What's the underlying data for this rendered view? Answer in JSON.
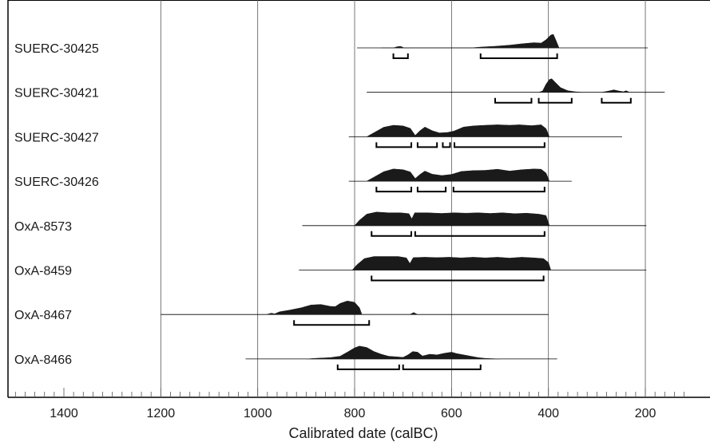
{
  "chart_data": {
    "type": "ridgeline-distribution",
    "xlabel": "Calibrated date (calBC)",
    "xlim": [
      1500,
      120
    ],
    "xticks": [
      1400,
      1200,
      1000,
      800,
      600,
      400,
      200
    ],
    "grid_lines": [
      1200,
      1000,
      800,
      600,
      400,
      200
    ],
    "minor_tick_step": 20,
    "colors": {
      "fill": "#1a1a1a",
      "line": "#000000",
      "grid": "#555555"
    },
    "samples": [
      {
        "label": "SUERC-30425",
        "range": [
          795,
          195
        ],
        "density": [
          [
            745,
            0
          ],
          [
            720,
            0
          ],
          [
            712,
            0.09
          ],
          [
            705,
            0.11
          ],
          [
            698,
            0
          ],
          [
            690,
            0
          ],
          [
            560,
            0
          ],
          [
            540,
            0.06
          ],
          [
            510,
            0.12
          ],
          [
            480,
            0.2
          ],
          [
            455,
            0.3
          ],
          [
            430,
            0.38
          ],
          [
            415,
            0.35
          ],
          [
            405,
            0.6
          ],
          [
            395,
            0.95
          ],
          [
            390,
            1.0
          ],
          [
            385,
            0.6
          ],
          [
            378,
            0
          ]
        ],
        "hpd": [
          [
            720,
            690
          ],
          [
            540,
            382
          ]
        ]
      },
      {
        "label": "SUERC-30421",
        "range": [
          775,
          160
        ],
        "density": [
          [
            420,
            0
          ],
          [
            412,
            0.1
          ],
          [
            405,
            0.6
          ],
          [
            398,
            0.95
          ],
          [
            393,
            1.0
          ],
          [
            385,
            0.7
          ],
          [
            375,
            0.35
          ],
          [
            360,
            0.12
          ],
          [
            345,
            0.04
          ],
          [
            330,
            0
          ],
          [
            290,
            0
          ],
          [
            275,
            0.1
          ],
          [
            265,
            0.18
          ],
          [
            255,
            0.1
          ],
          [
            245,
            0.04
          ],
          [
            240,
            0.12
          ],
          [
            232,
            0
          ],
          [
            222,
            0
          ]
        ],
        "hpd": [
          [
            510,
            435
          ],
          [
            420,
            352
          ],
          [
            290,
            230
          ]
        ]
      },
      {
        "label": "SUERC-30427",
        "range": [
          812,
          248
        ],
        "density": [
          [
            775,
            0
          ],
          [
            760,
            0.3
          ],
          [
            740,
            0.7
          ],
          [
            720,
            0.85
          ],
          [
            700,
            0.8
          ],
          [
            685,
            0.62
          ],
          [
            675,
            0.1
          ],
          [
            665,
            0.45
          ],
          [
            655,
            0.72
          ],
          [
            640,
            0.45
          ],
          [
            625,
            0.28
          ],
          [
            608,
            0.32
          ],
          [
            595,
            0.42
          ],
          [
            575,
            0.72
          ],
          [
            555,
            0.8
          ],
          [
            530,
            0.85
          ],
          [
            505,
            0.88
          ],
          [
            480,
            0.85
          ],
          [
            460,
            0.88
          ],
          [
            435,
            0.82
          ],
          [
            415,
            0.88
          ],
          [
            405,
            0.6
          ],
          [
            398,
            0
          ]
        ],
        "hpd": [
          [
            755,
            683
          ],
          [
            670,
            630
          ],
          [
            618,
            603
          ],
          [
            594,
            408
          ]
        ]
      },
      {
        "label": "SUERC-30426",
        "range": [
          812,
          352
        ],
        "density": [
          [
            775,
            0
          ],
          [
            760,
            0.3
          ],
          [
            740,
            0.7
          ],
          [
            720,
            0.9
          ],
          [
            700,
            0.85
          ],
          [
            685,
            0.68
          ],
          [
            675,
            0.2
          ],
          [
            665,
            0.5
          ],
          [
            655,
            0.75
          ],
          [
            640,
            0.52
          ],
          [
            620,
            0.42
          ],
          [
            600,
            0.5
          ],
          [
            580,
            0.72
          ],
          [
            555,
            0.78
          ],
          [
            530,
            0.8
          ],
          [
            505,
            0.88
          ],
          [
            480,
            0.75
          ],
          [
            455,
            0.85
          ],
          [
            430,
            0.9
          ],
          [
            415,
            0.88
          ],
          [
            405,
            0.6
          ],
          [
            398,
            0
          ]
        ],
        "hpd": [
          [
            755,
            683
          ],
          [
            670,
            612
          ],
          [
            596,
            408
          ]
        ]
      },
      {
        "label": "OxA-8573",
        "range": [
          908,
          198
        ],
        "density": [
          [
            800,
            0
          ],
          [
            790,
            0.4
          ],
          [
            775,
            0.85
          ],
          [
            755,
            1.0
          ],
          [
            730,
            0.95
          ],
          [
            705,
            0.95
          ],
          [
            688,
            0.88
          ],
          [
            682,
            0.5
          ],
          [
            676,
            0.95
          ],
          [
            650,
            0.95
          ],
          [
            620,
            0.9
          ],
          [
            595,
            0.95
          ],
          [
            570,
            0.92
          ],
          [
            545,
            0.95
          ],
          [
            520,
            0.9
          ],
          [
            495,
            0.95
          ],
          [
            470,
            0.88
          ],
          [
            445,
            0.92
          ],
          [
            420,
            0.85
          ],
          [
            405,
            0.75
          ],
          [
            398,
            0
          ]
        ],
        "hpd": [
          [
            765,
            683
          ],
          [
            675,
            408
          ]
        ]
      },
      {
        "label": "OxA-8459",
        "range": [
          915,
          198
        ],
        "density": [
          [
            805,
            0
          ],
          [
            795,
            0.4
          ],
          [
            780,
            0.85
          ],
          [
            760,
            1.0
          ],
          [
            735,
            1.0
          ],
          [
            710,
            1.0
          ],
          [
            693,
            0.9
          ],
          [
            686,
            0.48
          ],
          [
            679,
            0.92
          ],
          [
            655,
            0.95
          ],
          [
            630,
            0.92
          ],
          [
            605,
            0.95
          ],
          [
            580,
            0.9
          ],
          [
            555,
            0.95
          ],
          [
            530,
            0.9
          ],
          [
            505,
            0.95
          ],
          [
            480,
            0.88
          ],
          [
            455,
            0.95
          ],
          [
            430,
            0.9
          ],
          [
            410,
            0.85
          ],
          [
            400,
            0.55
          ],
          [
            395,
            0
          ]
        ],
        "hpd": [
          [
            765,
            410
          ]
        ]
      },
      {
        "label": "OxA-8467",
        "range": [
          1200,
          400
        ],
        "density": [
          [
            982,
            0
          ],
          [
            972,
            0.1
          ],
          [
            965,
            0.05
          ],
          [
            955,
            0.2
          ],
          [
            935,
            0.32
          ],
          [
            910,
            0.5
          ],
          [
            890,
            0.7
          ],
          [
            870,
            0.74
          ],
          [
            850,
            0.6
          ],
          [
            840,
            0.58
          ],
          [
            830,
            0.82
          ],
          [
            815,
            1.0
          ],
          [
            800,
            0.9
          ],
          [
            790,
            0.5
          ],
          [
            785,
            0
          ],
          [
            686,
            0
          ],
          [
            678,
            0.15
          ],
          [
            670,
            0
          ]
        ],
        "hpd": [
          [
            925,
            770
          ]
        ]
      },
      {
        "label": "OxA-8466",
        "range": [
          1025,
          382
        ],
        "density": [
          [
            900,
            0
          ],
          [
            880,
            0.05
          ],
          [
            850,
            0.1
          ],
          [
            830,
            0.2
          ],
          [
            815,
            0.5
          ],
          [
            800,
            0.82
          ],
          [
            790,
            0.95
          ],
          [
            775,
            0.85
          ],
          [
            760,
            0.55
          ],
          [
            745,
            0.35
          ],
          [
            730,
            0.2
          ],
          [
            700,
            0.12
          ],
          [
            690,
            0.3
          ],
          [
            680,
            0.55
          ],
          [
            670,
            0.5
          ],
          [
            660,
            0.22
          ],
          [
            645,
            0.35
          ],
          [
            630,
            0.3
          ],
          [
            615,
            0.42
          ],
          [
            600,
            0.5
          ],
          [
            590,
            0.4
          ],
          [
            575,
            0.3
          ],
          [
            560,
            0.2
          ],
          [
            545,
            0.1
          ],
          [
            530,
            0.04
          ],
          [
            500,
            0
          ]
        ],
        "hpd": [
          [
            835,
            708
          ],
          [
            700,
            540
          ]
        ]
      }
    ]
  }
}
